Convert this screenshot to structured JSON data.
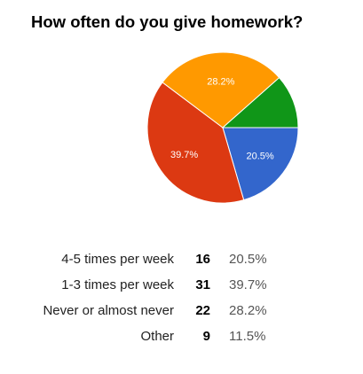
{
  "chart_data": {
    "type": "pie",
    "title": "How often do you give homework?",
    "slices": [
      {
        "label": "4-5 times per week",
        "count": 16,
        "percent": 20.5,
        "display": "20.5%",
        "color": "#3366cc"
      },
      {
        "label": "1-3 times per week",
        "count": 31,
        "percent": 39.7,
        "display": "39.7%",
        "color": "#dc3912"
      },
      {
        "label": "Never or almost never",
        "count": 22,
        "percent": 28.2,
        "display": "28.2%",
        "color": "#ff9900"
      },
      {
        "label": "Other",
        "count": 9,
        "percent": 11.5,
        "display": "11.5%",
        "color": "#109618"
      }
    ]
  }
}
